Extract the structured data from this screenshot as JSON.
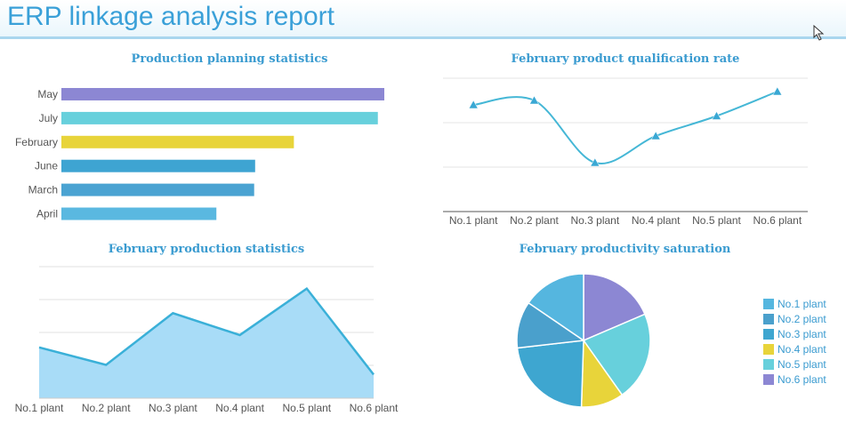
{
  "header": {
    "title": "ERP linkage analysis report"
  },
  "chart_data": [
    {
      "type": "bar",
      "orientation": "horizontal",
      "title": "Production planning statistics",
      "categories": [
        "May",
        "July",
        "February",
        "June",
        "March",
        "April"
      ],
      "values": [
        100,
        98,
        72,
        60,
        59.7,
        48
      ],
      "colors": [
        "#8c87d3",
        "#67d0dc",
        "#e8d43a",
        "#3ea4d2",
        "#4aa3d2",
        "#5ab8e0"
      ],
      "xlim": [
        0,
        100
      ]
    },
    {
      "type": "line",
      "smooth": true,
      "title": "February product qualification rate",
      "categories": [
        "No.1 plant",
        "No.2 plant",
        "No.3 plant",
        "No.4 plant",
        "No.5 plant",
        "No.6 plant"
      ],
      "values": [
        88,
        90,
        62,
        74,
        83,
        94
      ],
      "ylim": [
        40,
        100
      ],
      "grid": true,
      "color": "#45b7d6"
    },
    {
      "type": "area",
      "title": "February production statistics",
      "categories": [
        "No.1 plant",
        "No.2 plant",
        "No.3 plant",
        "No.4 plant",
        "No.5 plant",
        "No.6 plant"
      ],
      "values": [
        58,
        38,
        97,
        72,
        125,
        27
      ],
      "ylim": [
        0,
        150
      ],
      "grid": true,
      "color": "#3ab0d8",
      "fill": "#a8dcf7"
    },
    {
      "type": "pie",
      "title": "February productivity saturation",
      "labels": [
        "No.1 plant",
        "No.2 plant",
        "No.3 plant",
        "No.4 plant",
        "No.5 plant",
        "No.6 plant"
      ],
      "values": [
        15,
        11,
        22,
        10,
        21,
        18
      ],
      "colors": [
        "#55b6df",
        "#4aa0cc",
        "#3ea6d0",
        "#e8d43a",
        "#67d0dc",
        "#8c87d3"
      ],
      "legend": "right"
    }
  ]
}
